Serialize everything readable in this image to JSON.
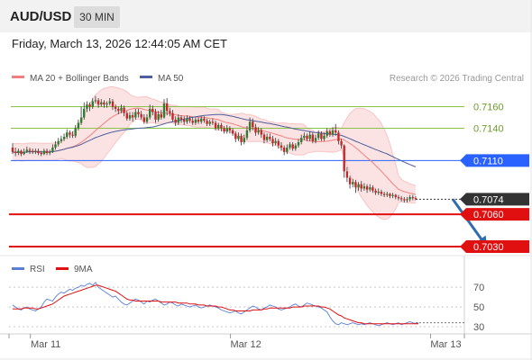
{
  "header": {
    "symbol": "AUD/USD",
    "timeframe": "30 MIN",
    "datetime": "Friday, March 13, 2026 12:44:05 AM CET"
  },
  "colors": {
    "bullish": "#2e7d32",
    "bearish": "#c62828",
    "bollinger_band": "#fbd9d9",
    "ma20": "#f08080",
    "ma50": "#4d5f9e",
    "resistance": "#8bc34a",
    "pivot": "#2962ff",
    "support": "#e01010",
    "current": "#333333",
    "forecast_arrow": "#2f6db0",
    "rsi": "#5b7fd6",
    "rsi_ma": "#e01010"
  },
  "chart_data": [
    {
      "type": "candlestick",
      "title": "AUD/USD",
      "timeframe": "30 MIN",
      "legend": [
        {
          "label": "MA 20 + Bollinger Bands",
          "color": "#f08080"
        },
        {
          "label": "MA 50",
          "color": "#4d5f9e"
        }
      ],
      "legend_position": "top-left",
      "watermark": "Research © 2026 Trading Central",
      "x_ticks": [
        "Mar 11",
        "Mar 12",
        "Mar 13"
      ],
      "x_tick_bar_index": [
        4,
        74,
        144
      ],
      "ylim": [
        7.02,
        7.178
      ],
      "y_unit_note": "values are price ×10 (0.7110 → 7.110)",
      "levels": [
        {
          "label": "0.7160",
          "value": 7.16,
          "role": "resistance"
        },
        {
          "label": "0.7140",
          "value": 7.14,
          "role": "resistance"
        },
        {
          "label": "0.7110",
          "value": 7.11,
          "role": "pivot"
        },
        {
          "label": "0.7074",
          "value": 7.074,
          "role": "current"
        },
        {
          "label": "0.7060",
          "value": 7.06,
          "role": "support"
        },
        {
          "label": "0.7030",
          "value": 7.03,
          "role": "support"
        }
      ],
      "forecast_arrow": {
        "from": [
          154,
          7.074
        ],
        "to": [
          166,
          7.03
        ]
      },
      "candles": [
        [
          7.122,
          7.118,
          7.126,
          7.116
        ],
        [
          7.118,
          7.117,
          7.122,
          7.114
        ],
        [
          7.117,
          7.119,
          7.121,
          7.115
        ],
        [
          7.119,
          7.116,
          7.12,
          7.114
        ],
        [
          7.116,
          7.118,
          7.121,
          7.115
        ],
        [
          7.118,
          7.12,
          7.123,
          7.117
        ],
        [
          7.12,
          7.119,
          7.122,
          7.116
        ],
        [
          7.119,
          7.118,
          7.121,
          7.116
        ],
        [
          7.118,
          7.119,
          7.121,
          7.116
        ],
        [
          7.119,
          7.117,
          7.121,
          7.115
        ],
        [
          7.117,
          7.116,
          7.119,
          7.114
        ],
        [
          7.116,
          7.119,
          7.121,
          7.115
        ],
        [
          7.119,
          7.117,
          7.121,
          7.115
        ],
        [
          7.117,
          7.118,
          7.12,
          7.115
        ],
        [
          7.118,
          7.122,
          7.125,
          7.117
        ],
        [
          7.122,
          7.125,
          7.128,
          7.12
        ],
        [
          7.125,
          7.128,
          7.131,
          7.123
        ],
        [
          7.128,
          7.13,
          7.133,
          7.126
        ],
        [
          7.13,
          7.132,
          7.135,
          7.128
        ],
        [
          7.132,
          7.136,
          7.139,
          7.13
        ],
        [
          7.136,
          7.134,
          7.138,
          7.131
        ],
        [
          7.134,
          7.133,
          7.137,
          7.131
        ],
        [
          7.133,
          7.14,
          7.143,
          7.131
        ],
        [
          7.14,
          7.145,
          7.148,
          7.138
        ],
        [
          7.145,
          7.15,
          7.16,
          7.143
        ],
        [
          7.15,
          7.158,
          7.164,
          7.148
        ],
        [
          7.158,
          7.162,
          7.165,
          7.155
        ],
        [
          7.162,
          7.16,
          7.164,
          7.156
        ],
        [
          7.16,
          7.165,
          7.168,
          7.158
        ],
        [
          7.165,
          7.166,
          7.17,
          7.163
        ],
        [
          7.166,
          7.162,
          7.168,
          7.159
        ],
        [
          7.162,
          7.164,
          7.167,
          7.16
        ],
        [
          7.164,
          7.162,
          7.166,
          7.159
        ],
        [
          7.162,
          7.163,
          7.165,
          7.159
        ],
        [
          7.163,
          7.165,
          7.168,
          7.161
        ],
        [
          7.165,
          7.16,
          7.167,
          7.157
        ],
        [
          7.16,
          7.158,
          7.162,
          7.155
        ],
        [
          7.158,
          7.156,
          7.16,
          7.153
        ],
        [
          7.156,
          7.159,
          7.162,
          7.154
        ],
        [
          7.159,
          7.154,
          7.161,
          7.151
        ],
        [
          7.154,
          7.149,
          7.156,
          7.147
        ],
        [
          7.149,
          7.152,
          7.155,
          7.147
        ],
        [
          7.152,
          7.15,
          7.155,
          7.146
        ],
        [
          7.15,
          7.155,
          7.158,
          7.148
        ],
        [
          7.155,
          7.153,
          7.158,
          7.15
        ],
        [
          7.153,
          7.15,
          7.156,
          7.148
        ],
        [
          7.15,
          7.146,
          7.153,
          7.144
        ],
        [
          7.146,
          7.15,
          7.153,
          7.144
        ],
        [
          7.15,
          7.158,
          7.162,
          7.148
        ],
        [
          7.158,
          7.155,
          7.161,
          7.152
        ],
        [
          7.155,
          7.148,
          7.158,
          7.145
        ],
        [
          7.148,
          7.153,
          7.156,
          7.146
        ],
        [
          7.153,
          7.15,
          7.157,
          7.148
        ],
        [
          7.15,
          7.163,
          7.167,
          7.149
        ],
        [
          7.163,
          7.156,
          7.168,
          7.152
        ],
        [
          7.156,
          7.154,
          7.159,
          7.151
        ],
        [
          7.154,
          7.148,
          7.157,
          7.146
        ],
        [
          7.148,
          7.145,
          7.151,
          7.142
        ],
        [
          7.145,
          7.15,
          7.153,
          7.143
        ],
        [
          7.15,
          7.148,
          7.152,
          7.145
        ],
        [
          7.148,
          7.146,
          7.151,
          7.143
        ],
        [
          7.146,
          7.149,
          7.152,
          7.144
        ],
        [
          7.149,
          7.147,
          7.151,
          7.145
        ],
        [
          7.147,
          7.145,
          7.15,
          7.143
        ],
        [
          7.145,
          7.148,
          7.15,
          7.143
        ],
        [
          7.148,
          7.146,
          7.15,
          7.144
        ],
        [
          7.146,
          7.149,
          7.151,
          7.144
        ],
        [
          7.149,
          7.147,
          7.151,
          7.145
        ],
        [
          7.147,
          7.144,
          7.149,
          7.142
        ],
        [
          7.144,
          7.146,
          7.148,
          7.142
        ],
        [
          7.146,
          7.145,
          7.149,
          7.143
        ],
        [
          7.145,
          7.14,
          7.147,
          7.138
        ],
        [
          7.14,
          7.143,
          7.145,
          7.138
        ],
        [
          7.143,
          7.14,
          7.145,
          7.137
        ],
        [
          7.14,
          7.137,
          7.142,
          7.135
        ],
        [
          7.137,
          7.14,
          7.143,
          7.135
        ],
        [
          7.14,
          7.138,
          7.142,
          7.135
        ],
        [
          7.138,
          7.135,
          7.14,
          7.133
        ],
        [
          7.135,
          7.13,
          7.137,
          7.127
        ],
        [
          7.13,
          7.133,
          7.136,
          7.128
        ],
        [
          7.133,
          7.127,
          7.135,
          7.124
        ],
        [
          7.127,
          7.131,
          7.134,
          7.125
        ],
        [
          7.131,
          7.138,
          7.142,
          7.129
        ],
        [
          7.138,
          7.146,
          7.15,
          7.136
        ],
        [
          7.146,
          7.141,
          7.149,
          7.138
        ],
        [
          7.141,
          7.136,
          7.144,
          7.133
        ],
        [
          7.136,
          7.138,
          7.141,
          7.134
        ],
        [
          7.138,
          7.134,
          7.14,
          7.131
        ],
        [
          7.134,
          7.129,
          7.136,
          7.126
        ],
        [
          7.129,
          7.132,
          7.135,
          7.127
        ],
        [
          7.132,
          7.13,
          7.135,
          7.128
        ],
        [
          7.13,
          7.126,
          7.133,
          7.123
        ],
        [
          7.126,
          7.128,
          7.131,
          7.124
        ],
        [
          7.128,
          7.124,
          7.13,
          7.121
        ],
        [
          7.124,
          7.122,
          7.127,
          7.119
        ],
        [
          7.122,
          7.118,
          7.124,
          7.115
        ],
        [
          7.118,
          7.122,
          7.125,
          7.116
        ],
        [
          7.122,
          7.125,
          7.127,
          7.12
        ],
        [
          7.125,
          7.121,
          7.127,
          7.119
        ],
        [
          7.121,
          7.124,
          7.126,
          7.119
        ],
        [
          7.124,
          7.127,
          7.13,
          7.122
        ],
        [
          7.127,
          7.131,
          7.134,
          7.125
        ],
        [
          7.131,
          7.133,
          7.136,
          7.129
        ],
        [
          7.133,
          7.13,
          7.135,
          7.128
        ],
        [
          7.13,
          7.134,
          7.137,
          7.128
        ],
        [
          7.134,
          7.128,
          7.136,
          7.126
        ],
        [
          7.128,
          7.131,
          7.134,
          7.126
        ],
        [
          7.131,
          7.135,
          7.138,
          7.129
        ],
        [
          7.135,
          7.13,
          7.137,
          7.128
        ],
        [
          7.13,
          7.133,
          7.136,
          7.128
        ],
        [
          7.133,
          7.137,
          7.14,
          7.131
        ],
        [
          7.137,
          7.134,
          7.139,
          7.132
        ],
        [
          7.134,
          7.138,
          7.141,
          7.132
        ],
        [
          7.138,
          7.136,
          7.144,
          7.133
        ],
        [
          7.136,
          7.128,
          7.138,
          7.125
        ],
        [
          7.128,
          7.124,
          7.13,
          7.121
        ],
        [
          7.124,
          7.1,
          7.125,
          7.094
        ],
        [
          7.1,
          7.094,
          7.104,
          7.09
        ],
        [
          7.094,
          7.088,
          7.096,
          7.084
        ],
        [
          7.088,
          7.09,
          7.093,
          7.085
        ],
        [
          7.09,
          7.085,
          7.092,
          7.08
        ],
        [
          7.085,
          7.088,
          7.09,
          7.082
        ],
        [
          7.088,
          7.084,
          7.091,
          7.081
        ],
        [
          7.084,
          7.086,
          7.089,
          7.082
        ],
        [
          7.086,
          7.083,
          7.088,
          7.08
        ],
        [
          7.083,
          7.085,
          7.088,
          7.081
        ],
        [
          7.085,
          7.082,
          7.087,
          7.08
        ],
        [
          7.082,
          7.08,
          7.084,
          7.078
        ],
        [
          7.08,
          7.081,
          7.084,
          7.078
        ],
        [
          7.081,
          7.079,
          7.083,
          7.077
        ],
        [
          7.079,
          7.078,
          7.081,
          7.076
        ],
        [
          7.078,
          7.079,
          7.081,
          7.076
        ],
        [
          7.079,
          7.077,
          7.08,
          7.075
        ],
        [
          7.077,
          7.078,
          7.08,
          7.075
        ],
        [
          7.078,
          7.076,
          7.079,
          7.074
        ],
        [
          7.076,
          7.075,
          7.078,
          7.073
        ],
        [
          7.075,
          7.074,
          7.077,
          7.072
        ],
        [
          7.074,
          7.073,
          7.076,
          7.071
        ],
        [
          7.073,
          7.074,
          7.076,
          7.071
        ],
        [
          7.074,
          7.076,
          7.078,
          7.072
        ],
        [
          7.076,
          7.075,
          7.078,
          7.073
        ],
        [
          7.075,
          7.074,
          7.077,
          7.073
        ]
      ]
    },
    {
      "type": "line",
      "title": "RSI",
      "legend": [
        {
          "label": "RSI",
          "color": "#5b7fd6"
        },
        {
          "label": "9MA",
          "color": "#e01010"
        }
      ],
      "legend_position": "top-left",
      "ylim": [
        20,
        82
      ],
      "y_ticks": [
        70,
        50,
        30
      ],
      "series": [
        {
          "name": "RSI",
          "values": [
            52,
            50,
            48,
            47,
            49,
            50,
            48,
            47,
            46,
            48,
            50,
            55,
            58,
            57,
            56,
            60,
            63,
            65,
            64,
            66,
            68,
            67,
            69,
            70,
            72,
            71,
            73,
            74,
            72,
            75,
            70,
            68,
            66,
            64,
            62,
            60,
            61,
            58,
            55,
            53,
            52,
            54,
            56,
            58,
            57,
            55,
            53,
            56,
            55,
            57,
            58,
            56,
            54,
            52,
            53,
            55,
            54,
            52,
            51,
            53,
            52,
            51,
            50,
            51,
            52,
            50,
            49,
            50,
            51,
            52,
            51,
            50,
            49,
            47,
            46,
            45,
            44,
            45,
            46,
            44,
            43,
            45,
            47,
            49,
            51,
            50,
            48,
            47,
            49,
            50,
            52,
            51,
            50,
            48,
            47,
            48,
            49,
            50,
            52,
            53,
            51,
            50,
            52,
            54,
            53,
            52,
            51,
            50,
            49,
            47,
            45,
            40,
            36,
            33,
            32,
            34,
            33,
            32,
            33,
            34,
            33,
            32,
            33,
            32,
            33,
            34,
            33,
            32,
            31,
            32,
            33,
            34,
            33,
            32,
            33,
            34,
            32,
            33,
            34,
            35,
            34,
            33,
            34
          ]
        },
        {
          "name": "9MA",
          "values": [
            48,
            48,
            48,
            48,
            49,
            49,
            49,
            49,
            48,
            48,
            49,
            50,
            51,
            52,
            53,
            55,
            57,
            59,
            61,
            62,
            63,
            64,
            65,
            66,
            67,
            68,
            69,
            70,
            71,
            72,
            72,
            71,
            70,
            69,
            68,
            67,
            66,
            64,
            62,
            60,
            58,
            57,
            57,
            56,
            56,
            56,
            56,
            56,
            56,
            56,
            56,
            56,
            55,
            55,
            55,
            55,
            55,
            55,
            54,
            54,
            54,
            54,
            53,
            53,
            53,
            52,
            52,
            52,
            51,
            51,
            51,
            51,
            50,
            50,
            49,
            48,
            47,
            47,
            46,
            46,
            46,
            46,
            46,
            46,
            47,
            47,
            47,
            47,
            48,
            48,
            49,
            49,
            49,
            49,
            49,
            49,
            49,
            49,
            50,
            50,
            50,
            50,
            51,
            51,
            51,
            51,
            51,
            51,
            50,
            50,
            49,
            48,
            46,
            44,
            42,
            41,
            39,
            38,
            37,
            36,
            35,
            34,
            34,
            33,
            33,
            33,
            33,
            33,
            33,
            33,
            33,
            33,
            33,
            33,
            33,
            33,
            33,
            33,
            33,
            33,
            33,
            33,
            33
          ]
        }
      ]
    }
  ],
  "x_axis": {
    "ticks": [
      "Mar 11",
      "Mar 12",
      "Mar 13"
    ]
  }
}
